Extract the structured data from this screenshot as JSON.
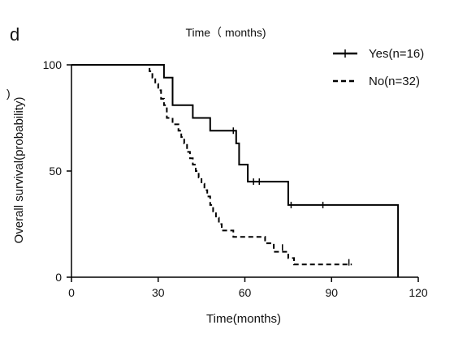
{
  "chart_data": {
    "type": "line",
    "subtype": "kaplan-meier",
    "panel_label": "d",
    "top_label": "Time（ months)",
    "stray_label": ")",
    "xlabel": "Time(months)",
    "ylabel": "Overall survival(probability)",
    "xlim": [
      0,
      120
    ],
    "ylim": [
      0,
      100
    ],
    "x_ticks": [
      0,
      30,
      60,
      90,
      120
    ],
    "y_ticks": [
      0,
      50,
      100
    ],
    "grid": false,
    "legend_position": "top-right",
    "series": [
      {
        "name": "Yes(n=16)",
        "line_style": "solid",
        "color": "#000000",
        "steps": [
          [
            0,
            100
          ],
          [
            32,
            100
          ],
          [
            32,
            94
          ],
          [
            35,
            94
          ],
          [
            35,
            81
          ],
          [
            42,
            81
          ],
          [
            42,
            75
          ],
          [
            48,
            75
          ],
          [
            48,
            69
          ],
          [
            57,
            69
          ],
          [
            57,
            63
          ],
          [
            58,
            63
          ],
          [
            58,
            53
          ],
          [
            61,
            53
          ],
          [
            61,
            45
          ],
          [
            75,
            45
          ],
          [
            75,
            34
          ],
          [
            113,
            34
          ],
          [
            113,
            0
          ]
        ],
        "censor_marks": [
          [
            56,
            69
          ],
          [
            63,
            45
          ],
          [
            65,
            45
          ],
          [
            76,
            34
          ],
          [
            87,
            34
          ]
        ]
      },
      {
        "name": "No(n=32)",
        "line_style": "dashed",
        "color": "#000000",
        "steps": [
          [
            0,
            100
          ],
          [
            27,
            100
          ],
          [
            27,
            97
          ],
          [
            28,
            97
          ],
          [
            28,
            94
          ],
          [
            29,
            94
          ],
          [
            29,
            91
          ],
          [
            30,
            91
          ],
          [
            30,
            88
          ],
          [
            31,
            88
          ],
          [
            31,
            84
          ],
          [
            32,
            84
          ],
          [
            32,
            81
          ],
          [
            33,
            81
          ],
          [
            33,
            75
          ],
          [
            35,
            75
          ],
          [
            35,
            72
          ],
          [
            37,
            72
          ],
          [
            37,
            69
          ],
          [
            38,
            69
          ],
          [
            38,
            66
          ],
          [
            39,
            66
          ],
          [
            39,
            63
          ],
          [
            40,
            63
          ],
          [
            40,
            59
          ],
          [
            41,
            59
          ],
          [
            41,
            56
          ],
          [
            42,
            56
          ],
          [
            42,
            53
          ],
          [
            43,
            53
          ],
          [
            43,
            50
          ],
          [
            44,
            50
          ],
          [
            44,
            47
          ],
          [
            45,
            47
          ],
          [
            45,
            44
          ],
          [
            46,
            44
          ],
          [
            46,
            41
          ],
          [
            47,
            41
          ],
          [
            47,
            38
          ],
          [
            48,
            38
          ],
          [
            48,
            34
          ],
          [
            49,
            34
          ],
          [
            49,
            31
          ],
          [
            50,
            31
          ],
          [
            50,
            28
          ],
          [
            51,
            28
          ],
          [
            51,
            25
          ],
          [
            52,
            25
          ],
          [
            52,
            22
          ],
          [
            56,
            22
          ],
          [
            56,
            19
          ],
          [
            67,
            19
          ],
          [
            67,
            16
          ],
          [
            70,
            16
          ],
          [
            70,
            12
          ],
          [
            75,
            12
          ],
          [
            75,
            9
          ],
          [
            77,
            9
          ],
          [
            77,
            6
          ],
          [
            97,
            6
          ]
        ],
        "censor_marks": [
          [
            73,
            14
          ],
          [
            96,
            7
          ]
        ]
      }
    ]
  }
}
